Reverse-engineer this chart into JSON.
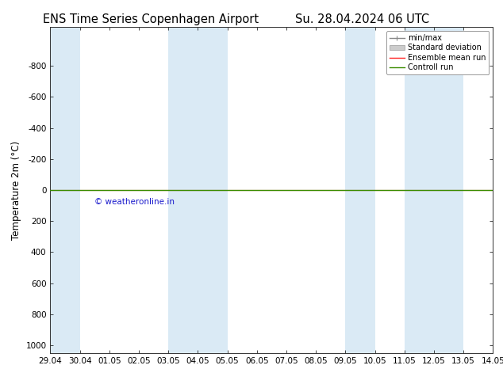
{
  "title_left": "ENS Time Series Copenhagen Airport",
  "title_right": "Su. 28.04.2024 06 UTC",
  "ylabel": "Temperature 2m (°C)",
  "ylim": [
    -1050,
    1050
  ],
  "yticks": [
    -800,
    -600,
    -400,
    -200,
    0,
    200,
    400,
    600,
    800,
    1000
  ],
  "ytick_labels": [
    "-800",
    "-600",
    "-400",
    "-200",
    "0",
    "200",
    "400",
    "600",
    "800",
    "1000"
  ],
  "x_start": 0,
  "x_end": 15,
  "xtick_positions": [
    0,
    1,
    2,
    3,
    4,
    5,
    6,
    7,
    8,
    9,
    10,
    11,
    12,
    13,
    14,
    15
  ],
  "xtick_labels": [
    "29.04",
    "30.04",
    "01.05",
    "02.05",
    "03.05",
    "04.05",
    "05.05",
    "06.05",
    "07.05",
    "08.05",
    "09.05",
    "10.05",
    "11.05",
    "12.05",
    "13.05",
    "14.05"
  ],
  "blue_bands": [
    [
      0,
      1
    ],
    [
      4,
      2
    ],
    [
      10,
      1
    ],
    [
      12,
      2
    ]
  ],
  "blue_band_color": "#daeaf5",
  "background_color": "#ffffff",
  "plot_bg_color": "#ffffff",
  "green_line_y": 0,
  "red_line_y": 0,
  "green_line_color": "#3a8c00",
  "red_line_color": "#ff2020",
  "watermark": "© weatheronline.in",
  "watermark_color": "#1a1acc",
  "legend_items": [
    "min/max",
    "Standard deviation",
    "Ensemble mean run",
    "Controll run"
  ],
  "minmax_line_color": "#888888",
  "stddev_fill_color": "#cccccc",
  "title_fontsize": 10.5,
  "axis_fontsize": 8.5,
  "tick_fontsize": 7.5,
  "figwidth": 6.34,
  "figheight": 4.9,
  "dpi": 100
}
